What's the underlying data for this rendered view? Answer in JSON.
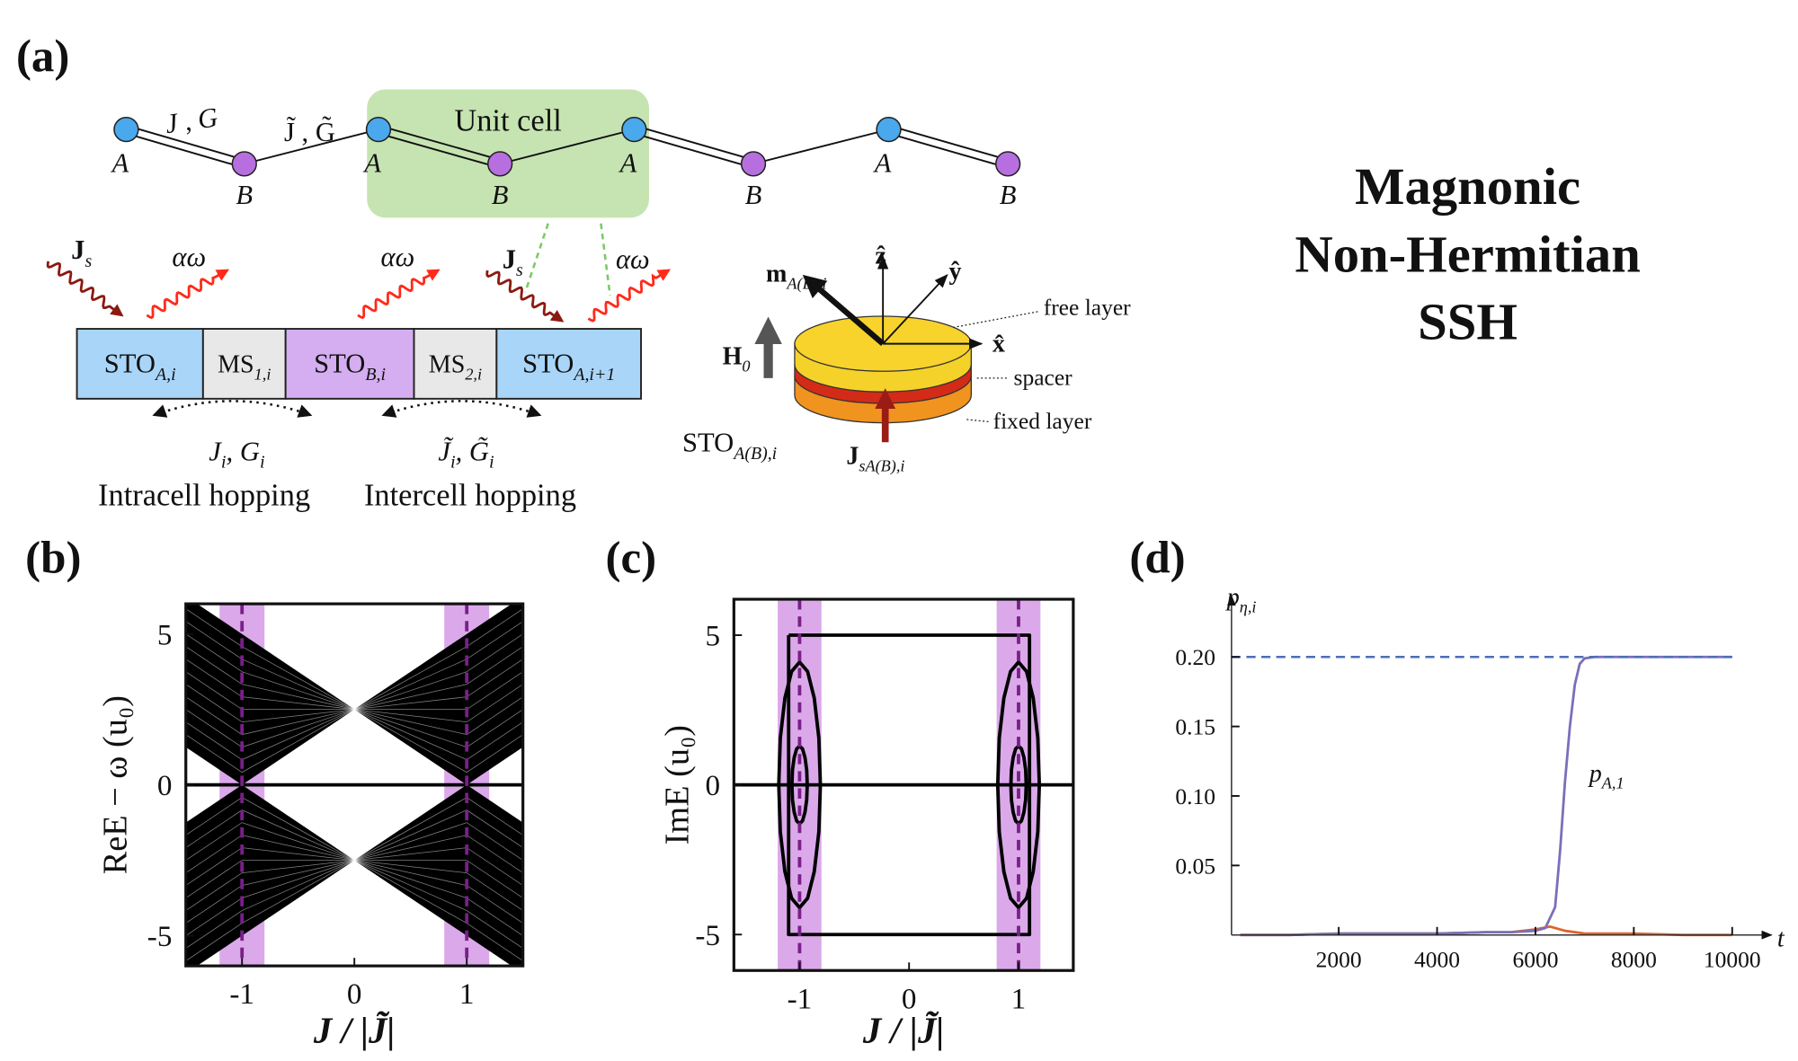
{
  "title_lines": [
    "Magnonic",
    "Non-Hermitian",
    "SSH"
  ],
  "panel_a": {
    "label": "(a)",
    "unit_cell": "Unit cell",
    "intracell_coupling": "J , G",
    "intercell_coupling": "J̃ , G̃",
    "sites": [
      "A",
      "B",
      "A",
      "B",
      "A",
      "B",
      "A",
      "B"
    ],
    "oscillators": [
      {
        "main": "STO",
        "sub": "A,i"
      },
      {
        "main": "MS",
        "sub": "1,i"
      },
      {
        "main": "STO",
        "sub": "B,i"
      },
      {
        "main": "MS",
        "sub": "2,i"
      },
      {
        "main": "STO",
        "sub": "A,i+1"
      }
    ],
    "injection": [
      {
        "main": "J",
        "sub": "s"
      },
      {
        "main": "J",
        "sub": "s"
      }
    ],
    "damping": [
      "αω",
      "αω",
      "αω"
    ],
    "hopping": [
      {
        "parts": [
          "J",
          "i",
          ", G",
          "i"
        ],
        "caption": "Intracell hopping"
      },
      {
        "parts": [
          "J̃",
          "i",
          ", G̃",
          "i"
        ],
        "caption": "Intercell hopping"
      }
    ],
    "sto": {
      "magnetization": {
        "main": "m",
        "sub": "A(B),i"
      },
      "axes": [
        "ẑ",
        "ŷ",
        "x̂"
      ],
      "layers": [
        "free layer",
        "spacer",
        "fixed layer"
      ],
      "field": {
        "main": "H",
        "sub": "0"
      },
      "name": {
        "main": "STO",
        "sub": "A(B),i"
      },
      "current": {
        "main": "J",
        "sub": "sA(B),i"
      }
    }
  },
  "chart_data": [
    {
      "type": "band",
      "label": "(b)",
      "xlabel": "J / |J̃|",
      "ylabel": "ReE − ω (u₀)",
      "x": [
        -1.5,
        -1,
        -0.5,
        0,
        0.5,
        1,
        1.5
      ],
      "bands": [
        {
          "color": "#000000",
          "lower": [
            1.25,
            0,
            1.25,
            2.5,
            1.25,
            0,
            1.25
          ],
          "upper": [
            6.25,
            5,
            3.75,
            2.5,
            3.75,
            5,
            6.25
          ]
        },
        {
          "color": "#000000",
          "lower": [
            -6.25,
            -5,
            -3.75,
            -2.5,
            -3.75,
            -5,
            -6.25
          ],
          "upper": [
            -1.25,
            0,
            -1.25,
            -2.5,
            -1.25,
            0,
            -1.25
          ]
        }
      ],
      "series": [
        {
          "color": "#000000",
          "values": [
            0,
            0,
            0,
            0,
            0,
            0,
            0
          ]
        }
      ],
      "xlim": [
        -1.5,
        1.5
      ],
      "ylim": [
        -6,
        6
      ],
      "xticks": [
        -1,
        0,
        1
      ],
      "yticks": [
        -5,
        0,
        5
      ],
      "spans": [
        [
          -1.2,
          -0.8
        ],
        [
          0.8,
          1.2
        ]
      ],
      "span_color": "#dba9ea",
      "dashed_lines": [
        -1,
        1
      ],
      "dashed_color": "#7a1f8a"
    },
    {
      "type": "line",
      "label": "(c)",
      "xlabel": "J / |J̃|",
      "ylabel": "ImE (u₀)",
      "series": [
        {
          "color": "#000000",
          "x": [
            -1.1,
            1.1,
            1.1,
            -1.1,
            -1.1
          ],
          "values": [
            5,
            5,
            -5,
            -5,
            5
          ]
        },
        {
          "color": "#000000",
          "x": [
            -0.81,
            -0.824,
            -0.866,
            -0.927,
            -1,
            -1.073,
            -1.134,
            -1.176,
            -1.19,
            -1.176,
            -1.134,
            -1.073,
            -1,
            -0.927,
            -0.866,
            -0.824,
            -0.81
          ],
          "values": [
            0,
            1.569,
            2.899,
            3.788,
            4.1,
            3.788,
            2.899,
            1.569,
            0,
            -1.569,
            -2.899,
            -3.788,
            -4.1,
            -3.788,
            -2.899,
            -1.569,
            0
          ]
        },
        {
          "color": "#000000",
          "x": [
            -0.93,
            -0.935,
            -0.951,
            -0.973,
            -1,
            -1.027,
            -1.049,
            -1.065,
            -1.07,
            -1.065,
            -1.049,
            -1.027,
            -1,
            -0.973,
            -0.951,
            -0.935,
            -0.93
          ],
          "values": [
            0,
            0.498,
            0.919,
            1.201,
            1.3,
            1.201,
            0.919,
            0.498,
            0,
            -0.498,
            -0.919,
            -1.201,
            -1.3,
            -1.201,
            -0.919,
            -0.498,
            0
          ]
        },
        {
          "color": "#000000",
          "x": [
            1.19,
            1.176,
            1.134,
            1.073,
            1,
            0.927,
            0.866,
            0.824,
            0.81,
            0.824,
            0.866,
            0.927,
            1,
            1.073,
            1.134,
            1.176,
            1.19
          ],
          "values": [
            0,
            1.569,
            2.899,
            3.788,
            4.1,
            3.788,
            2.899,
            1.569,
            0,
            -1.569,
            -2.899,
            -3.788,
            -4.1,
            -3.788,
            -2.899,
            -1.569,
            0
          ]
        },
        {
          "color": "#000000",
          "x": [
            1.07,
            1.065,
            1.049,
            1.027,
            1,
            0.973,
            0.951,
            0.935,
            0.93,
            0.935,
            0.951,
            0.973,
            1,
            1.027,
            1.049,
            1.065,
            1.07
          ],
          "values": [
            0,
            0.498,
            0.919,
            1.201,
            1.3,
            1.201,
            0.919,
            0.498,
            0,
            -0.498,
            -0.919,
            -1.201,
            -1.3,
            -1.201,
            -0.919,
            -0.498,
            0
          ]
        },
        {
          "color": "#000000",
          "x": [
            -1.6,
            1.5
          ],
          "values": [
            0,
            0
          ]
        }
      ],
      "xlim": [
        -1.6,
        1.5
      ],
      "ylim": [
        -6.2,
        6.2
      ],
      "xticks": [
        -1,
        0,
        1
      ],
      "yticks": [
        -5,
        0,
        5
      ],
      "spans": [
        [
          -1.2,
          -0.8
        ],
        [
          0.8,
          1.2
        ]
      ],
      "span_color": "#dba9ea",
      "dashed_lines": [
        -1,
        1
      ],
      "dashed_color": "#7a1f8a"
    },
    {
      "type": "line",
      "label": "(d)",
      "xlabel": "t",
      "ylabel": {
        "main": "p",
        "sub": "η,i"
      },
      "annotation": {
        "main": "p",
        "sub": "A,1"
      },
      "series": [
        {
          "color": "#e0622a",
          "x": [
            0,
            1000,
            2000,
            3000,
            4000,
            5000,
            5500,
            6000,
            6300,
            6600,
            7000,
            8000,
            9000,
            10000
          ],
          "values": [
            0,
            0,
            0.001,
            0.001,
            0.001,
            0.002,
            0.002,
            0.004,
            0.006,
            0.003,
            0.001,
            0.001,
            0,
            0
          ]
        },
        {
          "color": "#7b6fba",
          "x": [
            0,
            1000,
            2000,
            3000,
            4000,
            5000,
            5500,
            6000,
            6200,
            6400,
            6500,
            6600,
            6700,
            6800,
            6900,
            7000,
            7200,
            8000,
            9000,
            10000
          ],
          "values": [
            0,
            0,
            0.001,
            0.001,
            0.001,
            0.002,
            0.002,
            0.003,
            0.005,
            0.02,
            0.06,
            0.11,
            0.15,
            0.18,
            0.195,
            0.199,
            0.2,
            0.2,
            0.2,
            0.2
          ]
        }
      ],
      "hline": 0.2,
      "hline_color": "#4d6fb5",
      "xlim": [
        -180,
        10800
      ],
      "ylim": [
        0,
        0.244
      ],
      "xticks": [
        2000,
        4000,
        6000,
        8000,
        10000
      ],
      "yticks": [
        0.05,
        {
          "value": 0.1,
          "label": "0.10"
        },
        0.15,
        {
          "value": 0.2,
          "label": "0.20"
        }
      ]
    }
  ]
}
